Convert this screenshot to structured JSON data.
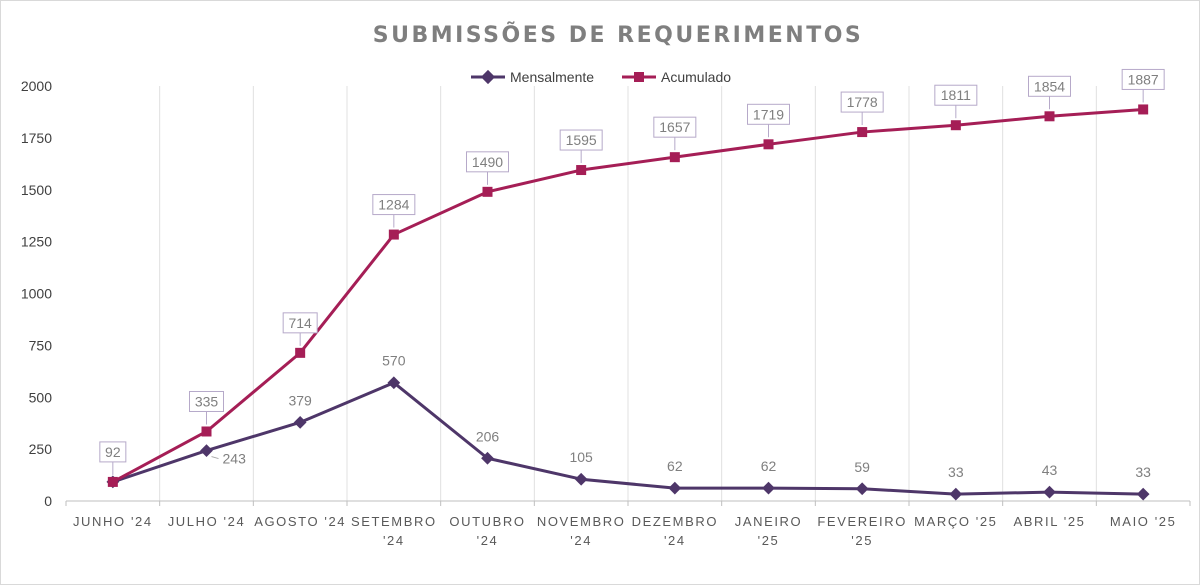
{
  "chart_data": {
    "type": "line",
    "title": "SUBMISSÕES DE REQUERIMENTOS",
    "xlabel": "",
    "ylabel": "",
    "ylim": [
      0,
      2000
    ],
    "yticks": [
      "0",
      "250",
      "500",
      "750",
      "1000",
      "1250",
      "1500",
      "1750",
      "2000"
    ],
    "grid": true,
    "legend_position": "top",
    "categories": [
      [
        "JUNHO '24"
      ],
      [
        "JULHO '24"
      ],
      [
        "AGOSTO '24"
      ],
      [
        "SETEMBRO",
        "'24"
      ],
      [
        "OUTUBRO",
        "'24"
      ],
      [
        "NOVEMBRO",
        "'24"
      ],
      [
        "DEZEMBRO",
        "'24"
      ],
      [
        "JANEIRO",
        "'25"
      ],
      [
        "FEVEREIRO",
        "'25"
      ],
      [
        "MARÇO '25"
      ],
      [
        "ABRIL '25"
      ],
      [
        "MAIO '25"
      ]
    ],
    "series": [
      {
        "name": "Mensalmente",
        "color": "#4e3669",
        "marker": "diamond",
        "values": [
          92,
          243,
          379,
          570,
          206,
          105,
          62,
          62,
          59,
          33,
          43,
          33
        ]
      },
      {
        "name": "Acumulado",
        "color": "#a51e56",
        "marker": "square",
        "values": [
          92,
          335,
          714,
          1284,
          1490,
          1595,
          1657,
          1719,
          1778,
          1811,
          1854,
          1887
        ]
      }
    ]
  }
}
